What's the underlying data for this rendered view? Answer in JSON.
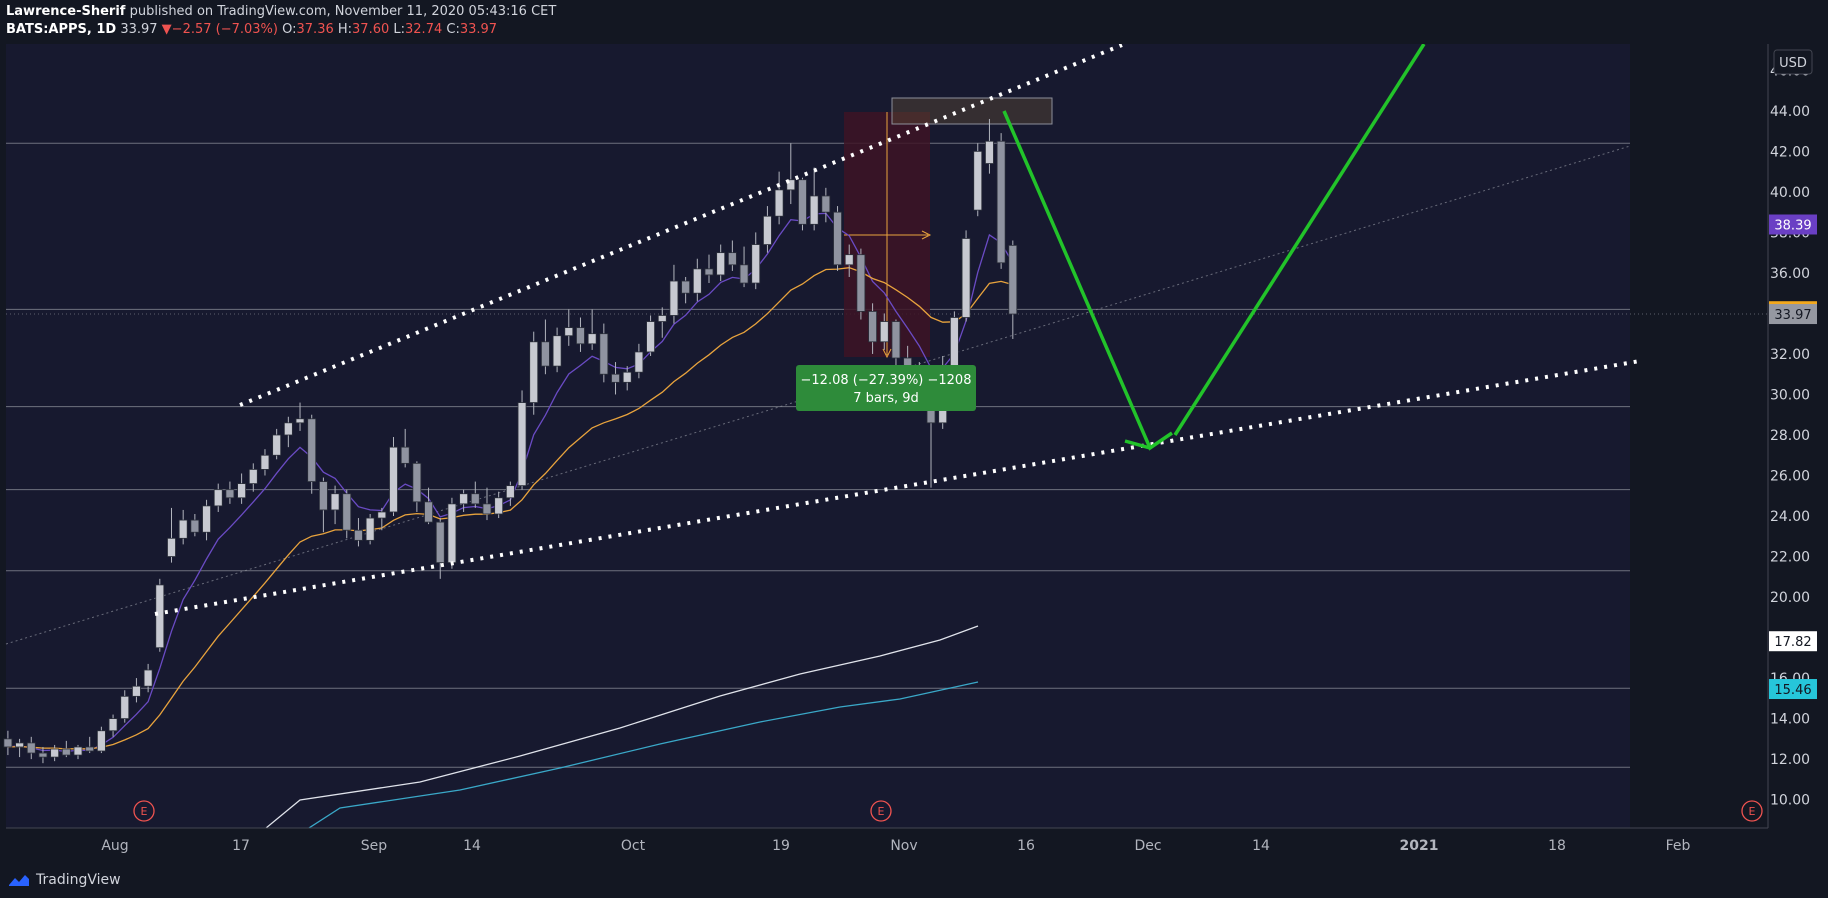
{
  "header": {
    "author": "Lawrence-Sherif",
    "published": "published on TradingView.com, November 11, 2020 05:43:16 CET",
    "symbol": "BATS:APPS, 1D",
    "last": "33.97",
    "change_arrow": "▼",
    "change": "−2.57 (−7.03%)",
    "o_label": "O:",
    "o_value": "37.36",
    "h_label": "H:",
    "h_value": "37.60",
    "l_label": "L:",
    "l_value": "32.74",
    "c_label": "C:",
    "c_value": "33.97"
  },
  "footer": {
    "brand": "TradingView",
    "icon": "tradingview-logo-icon"
  },
  "currency": "USD",
  "colors": {
    "background": "#131722",
    "plot": "#171a33",
    "up_candle": "#b2b5be",
    "down_candle": "#b2b5be",
    "ema_short": "#6a4bc4",
    "ema_mid": "#e8a33d",
    "ma_white": "#e0e3eb",
    "ma_cyan": "#3aa8c8",
    "trend_arrow": "#22c32a",
    "measure_box": "#3d1424",
    "measure_label": "#2e8b3a"
  },
  "chart_data": {
    "type": "candlestick",
    "title": "",
    "y_ticks": [
      "10.00",
      "12.00",
      "14.00",
      "16.00",
      "18.00",
      "20.00",
      "22.00",
      "24.00",
      "26.00",
      "28.00",
      "30.00",
      "32.00",
      "34.00",
      "36.00",
      "38.00",
      "40.00",
      "42.00",
      "44.00",
      "46.00"
    ],
    "x_ticks": [
      "Aug",
      "17",
      "Sep",
      "14",
      "Oct",
      "19",
      "Nov",
      "16",
      "Dec",
      "14",
      "2021",
      "18",
      "Feb"
    ],
    "ylim": [
      8.6,
      47.3
    ],
    "price_labels": [
      {
        "value": 38.39,
        "text": "38.39",
        "bg": "#6a3fc4",
        "fg": "#ffffff"
      },
      {
        "value": 34.11,
        "text": "34.11",
        "bg": "#f2a81d",
        "fg": "#131722"
      },
      {
        "value": 33.97,
        "text": "33.97",
        "bg": "#9598a1",
        "fg": "#131722"
      },
      {
        "value": 17.82,
        "text": "17.82",
        "bg": "#ffffff",
        "fg": "#131722"
      },
      {
        "value": 15.46,
        "text": "15.46",
        "bg": "#26c6da",
        "fg": "#131722"
      }
    ],
    "horizontal_levels": [
      42.4,
      34.2,
      29.4,
      25.3,
      21.3,
      15.5,
      11.6
    ],
    "earnings_markers": [
      "E",
      "E",
      "E"
    ],
    "measurement": {
      "text_line1": "−12.08 (−27.39%) −1208",
      "text_line2": "7 bars, 9d"
    },
    "candles": [
      {
        "o": 13.0,
        "h": 13.4,
        "l": 12.2,
        "c": 12.6
      },
      {
        "o": 12.6,
        "h": 13.0,
        "l": 12.1,
        "c": 12.8
      },
      {
        "o": 12.8,
        "h": 13.1,
        "l": 12.0,
        "c": 12.3
      },
      {
        "o": 12.3,
        "h": 12.6,
        "l": 11.8,
        "c": 12.1
      },
      {
        "o": 12.1,
        "h": 12.7,
        "l": 11.9,
        "c": 12.5
      },
      {
        "o": 12.5,
        "h": 12.9,
        "l": 12.1,
        "c": 12.2
      },
      {
        "o": 12.2,
        "h": 12.7,
        "l": 12.0,
        "c": 12.6
      },
      {
        "o": 12.6,
        "h": 13.1,
        "l": 12.3,
        "c": 12.4
      },
      {
        "o": 12.4,
        "h": 13.6,
        "l": 12.3,
        "c": 13.4
      },
      {
        "o": 13.4,
        "h": 14.2,
        "l": 13.1,
        "c": 14.0
      },
      {
        "o": 14.0,
        "h": 15.4,
        "l": 13.8,
        "c": 15.1
      },
      {
        "o": 15.1,
        "h": 16.0,
        "l": 14.8,
        "c": 15.6
      },
      {
        "o": 15.6,
        "h": 16.7,
        "l": 15.3,
        "c": 16.4
      },
      {
        "o": 17.5,
        "h": 20.9,
        "l": 17.3,
        "c": 20.6
      },
      {
        "o": 22.0,
        "h": 24.4,
        "l": 21.7,
        "c": 22.9
      },
      {
        "o": 22.9,
        "h": 24.3,
        "l": 22.6,
        "c": 23.8
      },
      {
        "o": 23.8,
        "h": 24.1,
        "l": 23.0,
        "c": 23.2
      },
      {
        "o": 23.2,
        "h": 24.8,
        "l": 22.8,
        "c": 24.5
      },
      {
        "o": 24.5,
        "h": 25.6,
        "l": 24.2,
        "c": 25.3
      },
      {
        "o": 25.3,
        "h": 25.7,
        "l": 24.6,
        "c": 24.9
      },
      {
        "o": 24.9,
        "h": 26.1,
        "l": 24.6,
        "c": 25.6
      },
      {
        "o": 25.6,
        "h": 26.6,
        "l": 25.2,
        "c": 26.3
      },
      {
        "o": 26.3,
        "h": 27.3,
        "l": 26.0,
        "c": 27.0
      },
      {
        "o": 27.0,
        "h": 28.3,
        "l": 26.8,
        "c": 28.0
      },
      {
        "o": 28.0,
        "h": 28.9,
        "l": 27.4,
        "c": 28.6
      },
      {
        "o": 28.6,
        "h": 29.6,
        "l": 28.2,
        "c": 28.8
      },
      {
        "o": 28.8,
        "h": 29.0,
        "l": 25.1,
        "c": 25.7
      },
      {
        "o": 25.7,
        "h": 25.9,
        "l": 23.2,
        "c": 24.3
      },
      {
        "o": 24.3,
        "h": 25.5,
        "l": 23.6,
        "c": 25.1
      },
      {
        "o": 25.1,
        "h": 25.3,
        "l": 22.9,
        "c": 23.3
      },
      {
        "o": 23.3,
        "h": 23.9,
        "l": 22.5,
        "c": 22.8
      },
      {
        "o": 22.8,
        "h": 24.1,
        "l": 22.6,
        "c": 23.9
      },
      {
        "o": 23.9,
        "h": 24.4,
        "l": 23.3,
        "c": 24.2
      },
      {
        "o": 24.2,
        "h": 27.9,
        "l": 24.0,
        "c": 27.4
      },
      {
        "o": 27.4,
        "h": 28.3,
        "l": 26.4,
        "c": 26.6
      },
      {
        "o": 26.6,
        "h": 26.7,
        "l": 24.2,
        "c": 24.7
      },
      {
        "o": 24.7,
        "h": 25.4,
        "l": 23.6,
        "c": 23.7
      },
      {
        "o": 23.7,
        "h": 23.9,
        "l": 20.9,
        "c": 21.7
      },
      {
        "o": 21.7,
        "h": 24.9,
        "l": 21.4,
        "c": 24.6
      },
      {
        "o": 24.6,
        "h": 25.3,
        "l": 24.2,
        "c": 25.1
      },
      {
        "o": 25.1,
        "h": 25.7,
        "l": 24.4,
        "c": 24.6
      },
      {
        "o": 24.6,
        "h": 25.4,
        "l": 23.8,
        "c": 24.1
      },
      {
        "o": 24.1,
        "h": 25.2,
        "l": 23.9,
        "c": 24.9
      },
      {
        "o": 24.9,
        "h": 25.7,
        "l": 24.5,
        "c": 25.5
      },
      {
        "o": 25.5,
        "h": 30.2,
        "l": 25.3,
        "c": 29.6
      },
      {
        "o": 29.6,
        "h": 33.1,
        "l": 29.0,
        "c": 32.6
      },
      {
        "o": 32.6,
        "h": 33.7,
        "l": 31.0,
        "c": 31.4
      },
      {
        "o": 31.4,
        "h": 33.3,
        "l": 31.1,
        "c": 32.9
      },
      {
        "o": 32.9,
        "h": 34.2,
        "l": 32.4,
        "c": 33.3
      },
      {
        "o": 33.3,
        "h": 33.8,
        "l": 32.1,
        "c": 32.5
      },
      {
        "o": 32.5,
        "h": 34.2,
        "l": 32.2,
        "c": 33.0
      },
      {
        "o": 33.0,
        "h": 33.5,
        "l": 30.6,
        "c": 31.0
      },
      {
        "o": 31.0,
        "h": 31.6,
        "l": 30.0,
        "c": 30.6
      },
      {
        "o": 30.6,
        "h": 31.4,
        "l": 30.2,
        "c": 31.1
      },
      {
        "o": 31.1,
        "h": 32.5,
        "l": 30.8,
        "c": 32.1
      },
      {
        "o": 32.1,
        "h": 33.9,
        "l": 31.9,
        "c": 33.6
      },
      {
        "o": 33.6,
        "h": 34.3,
        "l": 32.8,
        "c": 33.9
      },
      {
        "o": 33.9,
        "h": 36.4,
        "l": 33.5,
        "c": 35.6
      },
      {
        "o": 35.6,
        "h": 35.8,
        "l": 34.5,
        "c": 35.0
      },
      {
        "o": 35.0,
        "h": 36.7,
        "l": 34.6,
        "c": 36.2
      },
      {
        "o": 36.2,
        "h": 36.9,
        "l": 35.5,
        "c": 35.9
      },
      {
        "o": 35.9,
        "h": 37.4,
        "l": 35.6,
        "c": 37.0
      },
      {
        "o": 37.0,
        "h": 37.6,
        "l": 36.1,
        "c": 36.4
      },
      {
        "o": 36.4,
        "h": 37.3,
        "l": 35.3,
        "c": 35.5
      },
      {
        "o": 35.5,
        "h": 38.0,
        "l": 35.2,
        "c": 37.4
      },
      {
        "o": 37.4,
        "h": 39.3,
        "l": 37.0,
        "c": 38.8
      },
      {
        "o": 38.8,
        "h": 41.0,
        "l": 38.4,
        "c": 40.1
      },
      {
        "o": 40.1,
        "h": 42.4,
        "l": 39.4,
        "c": 40.6
      },
      {
        "o": 40.6,
        "h": 40.7,
        "l": 38.1,
        "c": 38.4
      },
      {
        "o": 38.4,
        "h": 41.2,
        "l": 38.1,
        "c": 39.8
      },
      {
        "o": 39.8,
        "h": 40.2,
        "l": 38.5,
        "c": 39.0
      },
      {
        "o": 39.0,
        "h": 39.3,
        "l": 36.1,
        "c": 36.4
      },
      {
        "o": 36.4,
        "h": 37.4,
        "l": 35.8,
        "c": 36.9
      },
      {
        "o": 36.9,
        "h": 37.2,
        "l": 33.7,
        "c": 34.1
      },
      {
        "o": 34.1,
        "h": 34.5,
        "l": 32.0,
        "c": 32.6
      },
      {
        "o": 32.6,
        "h": 34.0,
        "l": 32.2,
        "c": 33.6
      },
      {
        "o": 33.6,
        "h": 33.7,
        "l": 31.4,
        "c": 31.8
      },
      {
        "o": 31.8,
        "h": 32.4,
        "l": 30.8,
        "c": 31.2
      },
      {
        "o": 31.2,
        "h": 31.6,
        "l": 29.9,
        "c": 30.2
      },
      {
        "o": 30.2,
        "h": 31.0,
        "l": 25.4,
        "c": 28.6
      },
      {
        "o": 28.6,
        "h": 31.9,
        "l": 28.3,
        "c": 31.3
      },
      {
        "o": 31.3,
        "h": 34.1,
        "l": 31.0,
        "c": 33.8
      },
      {
        "o": 33.8,
        "h": 38.1,
        "l": 33.6,
        "c": 37.7
      },
      {
        "o": 39.1,
        "h": 42.4,
        "l": 38.8,
        "c": 42.0
      },
      {
        "o": 41.4,
        "h": 43.6,
        "l": 40.9,
        "c": 42.5
      },
      {
        "o": 42.5,
        "h": 42.9,
        "l": 36.2,
        "c": 36.5
      },
      {
        "o": 37.36,
        "h": 37.6,
        "l": 32.74,
        "c": 33.97
      }
    ]
  }
}
